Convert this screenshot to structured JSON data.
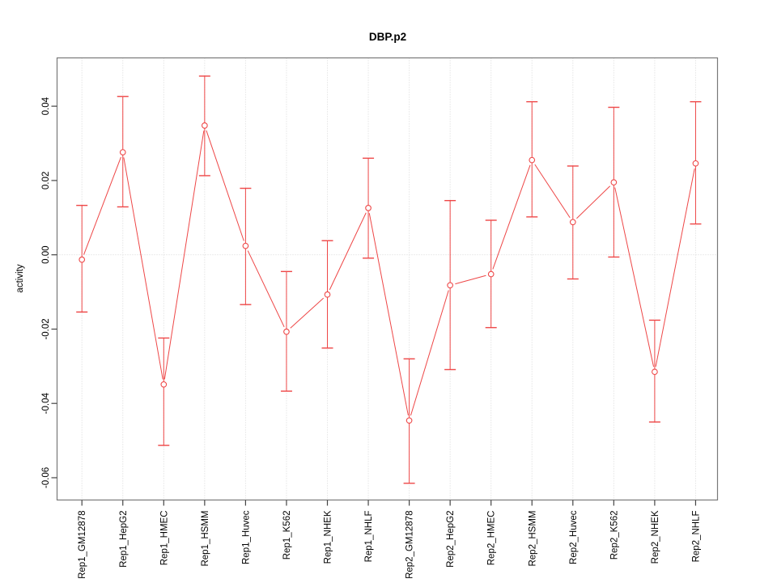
{
  "chart_data": {
    "type": "line",
    "title": "DBP.p2",
    "xlabel": "",
    "ylabel": "activity",
    "categories": [
      "Rep1_GM12878",
      "Rep1_HepG2",
      "Rep1_HMEC",
      "Rep1_HSMM",
      "Rep1_Huvec",
      "Rep1_K562",
      "Rep1_NHEK",
      "Rep1_NHLF",
      "Rep2_GM12878",
      "Rep2_HepG2",
      "Rep2_HMEC",
      "Rep2_HSMM",
      "Rep2_Huvec",
      "Rep2_K562",
      "Rep2_NHEK",
      "Rep2_NHLF"
    ],
    "series": [
      {
        "name": "activity",
        "values": [
          -0.0013,
          0.0276,
          -0.0349,
          0.0348,
          0.0024,
          -0.0207,
          -0.0107,
          0.0126,
          -0.0446,
          -0.0082,
          -0.0052,
          0.0255,
          0.0088,
          0.0195,
          -0.0315,
          0.0246
        ],
        "upper": [
          0.0133,
          0.0426,
          -0.0224,
          0.0481,
          0.0179,
          -0.0045,
          0.0038,
          0.026,
          -0.028,
          0.0146,
          0.0093,
          0.0412,
          0.0239,
          0.0397,
          -0.0176,
          0.0412
        ],
        "lower": [
          -0.0154,
          0.0129,
          -0.0513,
          0.0213,
          -0.0134,
          -0.0367,
          -0.0251,
          -0.0009,
          -0.0615,
          -0.0309,
          -0.0196,
          0.0102,
          -0.0065,
          -0.0006,
          -0.045,
          0.0083
        ]
      }
    ],
    "ylim": [
      -0.066,
      0.053
    ],
    "yticks": [
      0.04,
      0.02,
      0,
      -0.02,
      -0.04,
      -0.06
    ],
    "ytick_labels": [
      "0.04",
      "0.02",
      "0.00",
      "-0.02",
      "-0.04",
      "-0.06"
    ],
    "grid": {
      "vertical": true,
      "horizontal_zero": true,
      "style": "dotted"
    },
    "legend": "none",
    "marker": "open-circle",
    "error_bars": true,
    "x_label_rotation": -90,
    "colors": {
      "series": "#ee4747",
      "grid": "#d8d8d8",
      "axis": "#787878",
      "tick": "#444444",
      "text": "#000000",
      "background": "#ffffff"
    }
  }
}
